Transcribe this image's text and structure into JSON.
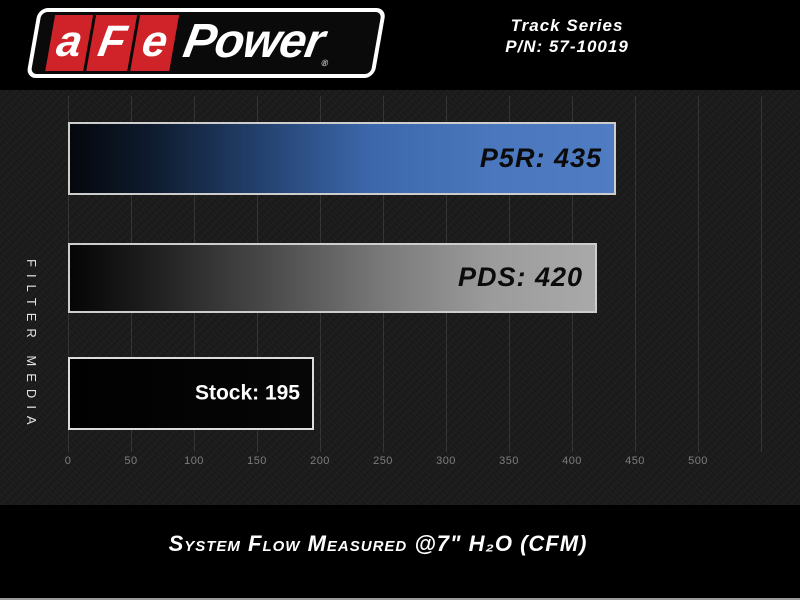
{
  "header": {
    "logo": {
      "letters": [
        "a",
        "F",
        "e"
      ],
      "suffix": "Power",
      "registered_mark": "®",
      "block_color": "#cf2329"
    },
    "product_line": "Track Series",
    "part_number": "P/N: 57-10019"
  },
  "caption": "System Flow Measured @7\" H₂O (CFM)",
  "chart_data": {
    "type": "bar",
    "orientation": "horizontal",
    "title": "",
    "categories": [
      "P5R",
      "PDS",
      "Stock"
    ],
    "values": [
      435,
      420,
      195
    ],
    "bar_labels": [
      "P5R: 435",
      "PDS: 420",
      "Stock: 195"
    ],
    "label_styles": [
      "dark",
      "dark",
      "light"
    ],
    "bar_colors": [
      "#4a77bd",
      "#a9a9a9",
      "#030303"
    ],
    "xlabel": "System Flow Measured @7\" H₂O (CFM)",
    "ylabel": "FILTER MEDIA",
    "xlim": [
      0,
      550
    ],
    "x_ticks": [
      0,
      50,
      100,
      150,
      200,
      250,
      300,
      350,
      400,
      450,
      500
    ],
    "grid_ticks": [
      0,
      50,
      100,
      150,
      200,
      250,
      300,
      350,
      400,
      450,
      500,
      550
    ],
    "grid": true,
    "legend": "none",
    "background_color": "#191919",
    "tick_label_color": "#7d7d7d"
  }
}
